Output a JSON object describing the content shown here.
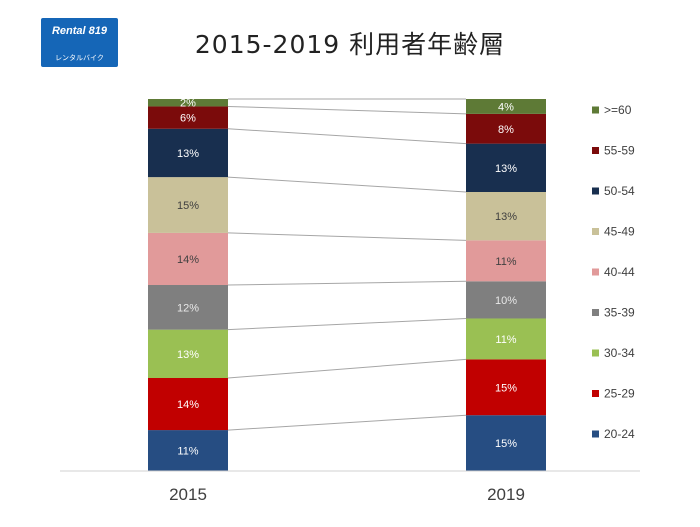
{
  "logo": {
    "brand": "Rental 819",
    "sub": "レンタルバイク",
    "color": "#1566b7"
  },
  "chart_data": {
    "type": "bar",
    "stacked": true,
    "normalized_percent": true,
    "title": "2015-2019 利用者年齢層",
    "xlabel": "",
    "ylabel": "",
    "categories": [
      "2015",
      "2019"
    ],
    "ylim": [
      0,
      100
    ],
    "grid": false,
    "legend_placement": "right",
    "connector_lines": true,
    "series": [
      {
        "name": "20-24",
        "values": [
          11,
          15
        ],
        "labels": [
          "11%",
          "15%"
        ],
        "color": "#264d82"
      },
      {
        "name": "25-29",
        "values": [
          14,
          15
        ],
        "labels": [
          "14%",
          "15%"
        ],
        "color": "#c10000"
      },
      {
        "name": "30-34",
        "values": [
          13,
          11
        ],
        "labels": [
          "13%",
          "11%"
        ],
        "color": "#9ac053"
      },
      {
        "name": "35-39",
        "values": [
          12,
          10
        ],
        "labels": [
          "12%",
          "10%"
        ],
        "color": "#7f7f7f"
      },
      {
        "name": "40-44",
        "values": [
          14,
          11
        ],
        "labels": [
          "14%",
          "11%"
        ],
        "color": "#e19a9a"
      },
      {
        "name": "45-49",
        "values": [
          15,
          13
        ],
        "labels": [
          "15%",
          "13%"
        ],
        "color": "#c9c199"
      },
      {
        "name": "50-54",
        "values": [
          13,
          13
        ],
        "labels": [
          "13%",
          "13%"
        ],
        "color": "#182f4f"
      },
      {
        "name": "55-59",
        "values": [
          6,
          8
        ],
        "labels": [
          "6%",
          "8%"
        ],
        "color": "#7b0b0b"
      },
      {
        "name": ">=60",
        "values": [
          2,
          4
        ],
        "labels": [
          "2%",
          "4%"
        ],
        "color": "#5e7a36"
      }
    ]
  }
}
